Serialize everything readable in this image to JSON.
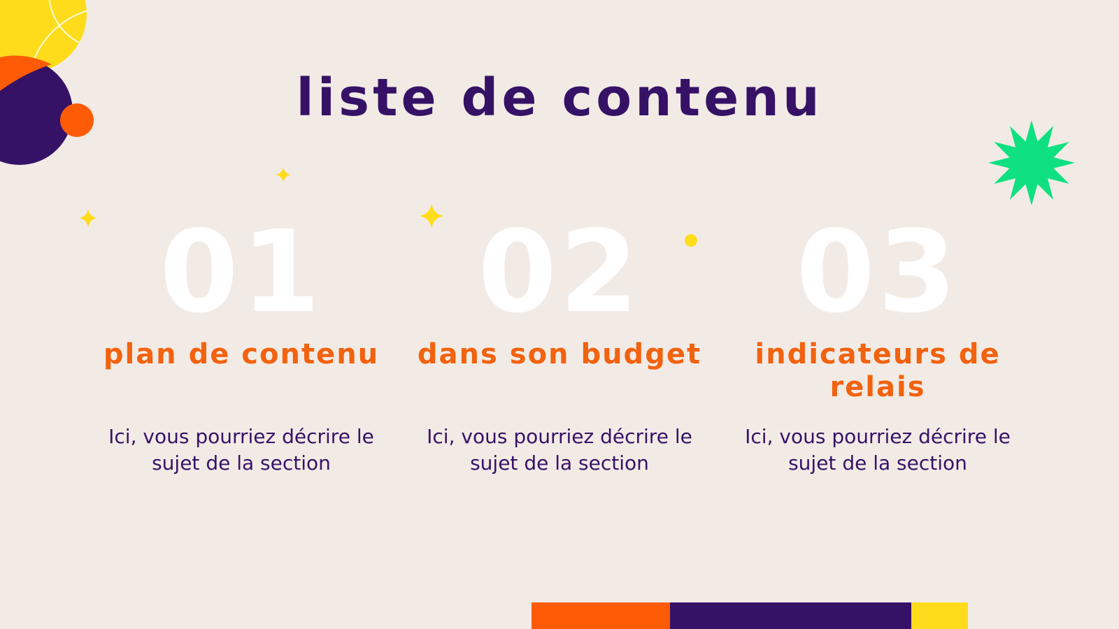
{
  "slide": {
    "title": "Liste de contenu",
    "items": [
      {
        "number": "01",
        "heading": "Plan de contenu",
        "description": "Ici, vous pourriez décrire le sujet de la section"
      },
      {
        "number": "02",
        "heading": "Dans son budget",
        "description": "Ici, vous pourriez décrire le sujet de la section"
      },
      {
        "number": "03",
        "heading": "Indicateurs de relais",
        "description": "Ici, vous pourriez décrire le sujet de la section"
      }
    ]
  },
  "colors": {
    "background": "#f2ebe5",
    "title": "#361267",
    "heading": "#f2620f",
    "number": "#ffffff",
    "purple": "#361267",
    "orange": "#fe5b06",
    "yellow": "#fedc1c",
    "green": "#0fe082"
  }
}
